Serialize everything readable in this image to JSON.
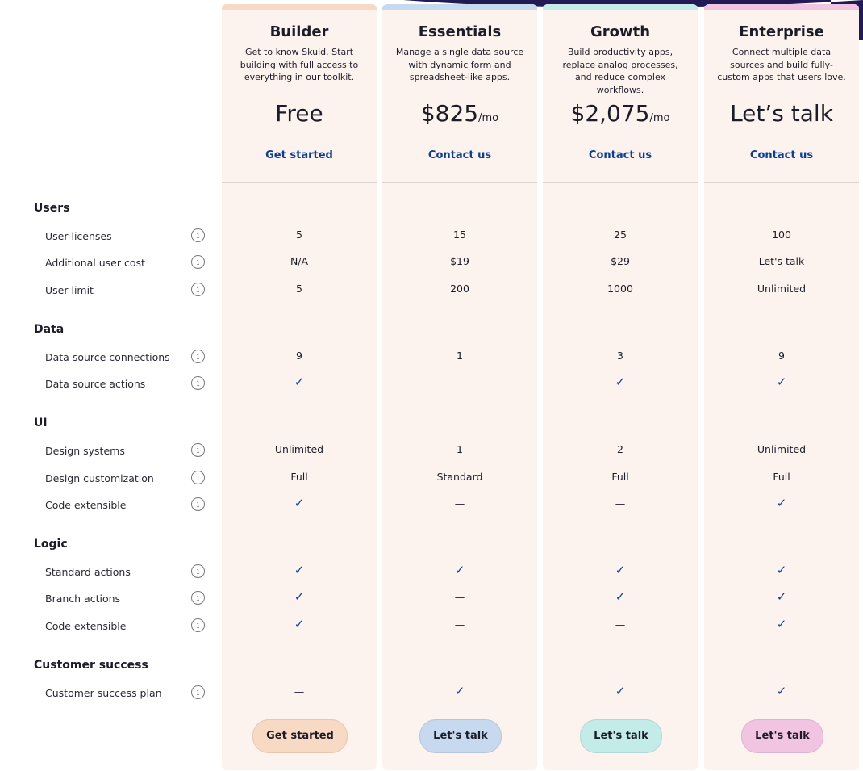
{
  "plans": [
    {
      "name": "Builder",
      "description": "Get to know Skuid. Start building with full access to everything in our toolkit.",
      "price": "Free",
      "link": "Get started",
      "button": "Get started",
      "color": "#f8d9c3"
    },
    {
      "name": "Essentials",
      "description": "Manage a single data source with dynamic form and spreadsheet-like apps.",
      "price": "$825",
      "price_unit": "/mo",
      "link": "Contact us",
      "button": "Let's talk",
      "color": "#c6d9ef"
    },
    {
      "name": "Growth",
      "description": "Build productivity apps, replace analog processes, and reduce complex workflows.",
      "price": "$2,075",
      "price_unit": "/mo",
      "link": "Contact us",
      "button": "Let's talk",
      "color": "#c3ebe8"
    },
    {
      "name": "Enterprise",
      "description": "Connect multiple data sources and build fully-custom apps that users love.",
      "price": "Let’s talk",
      "link": "Contact us",
      "button": "Let's talk",
      "color": "#f1c4e2"
    }
  ],
  "sections": [
    {
      "title": "Users",
      "rows": [
        {
          "label": "User licenses",
          "values": [
            "5",
            "15",
            "25",
            "100"
          ]
        },
        {
          "label": "Additional user cost",
          "values": [
            "N/A",
            "$19",
            "$29",
            "Let's talk"
          ]
        },
        {
          "label": "User limit",
          "values": [
            "5",
            "200",
            "1000",
            "Unlimited"
          ]
        }
      ]
    },
    {
      "title": "Data",
      "rows": [
        {
          "label": "Data source connections",
          "values": [
            "9",
            "1",
            "3",
            "9"
          ]
        },
        {
          "label": "Data source actions",
          "values": [
            "✓",
            "—",
            "✓",
            "✓"
          ]
        }
      ]
    },
    {
      "title": "UI",
      "rows": [
        {
          "label": "Design systems",
          "values": [
            "Unlimited",
            "1",
            "2",
            "Unlimited"
          ]
        },
        {
          "label": "Design customization",
          "values": [
            "Full",
            "Standard",
            "Full",
            "Full"
          ]
        },
        {
          "label": "Code extensible",
          "values": [
            "✓",
            "—",
            "—",
            "✓"
          ]
        }
      ]
    },
    {
      "title": "Logic",
      "rows": [
        {
          "label": "Standard actions",
          "values": [
            "✓",
            "✓",
            "✓",
            "✓"
          ]
        },
        {
          "label": "Branch actions",
          "values": [
            "✓",
            "—",
            "✓",
            "✓"
          ]
        },
        {
          "label": "Code extensible",
          "values": [
            "✓",
            "—",
            "—",
            "✓"
          ]
        }
      ]
    },
    {
      "title": "Customer success",
      "rows": [
        {
          "label": "Customer success plan",
          "values": [
            "—",
            "✓",
            "✓",
            "✓"
          ]
        }
      ]
    }
  ]
}
